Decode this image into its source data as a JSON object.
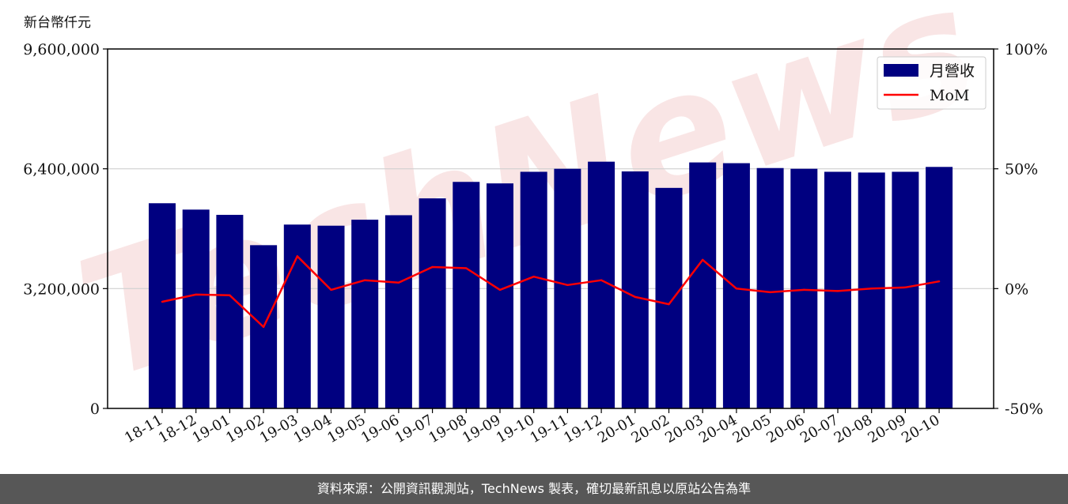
{
  "header": {
    "unit_label": "新台幣仟元"
  },
  "footer": {
    "source_text": "資料來源：公開資訊觀測站，TechNews 製表，確切最新訊息以原站公告為準"
  },
  "colors": {
    "bar": "#000080",
    "line": "#ff0000",
    "watermark": "#f2c6c6"
  },
  "watermark": "TechNews",
  "chart_data": {
    "type": "bar",
    "categories": [
      "18-11",
      "18-12",
      "19-01",
      "19-02",
      "19-03",
      "19-04",
      "19-05",
      "19-06",
      "19-07",
      "19-08",
      "19-09",
      "19-10",
      "19-11",
      "19-12",
      "20-01",
      "20-02",
      "20-03",
      "20-04",
      "20-05",
      "20-06",
      "20-07",
      "20-08",
      "20-09",
      "20-10"
    ],
    "series": [
      {
        "name": "月營收",
        "type": "bar",
        "axis": "left",
        "values": [
          5480000,
          5310000,
          5170000,
          4360000,
          4910000,
          4880000,
          5040000,
          5160000,
          5610000,
          6050000,
          6010000,
          6320000,
          6400000,
          6590000,
          6330000,
          5890000,
          6570000,
          6550000,
          6420000,
          6400000,
          6320000,
          6300000,
          6320000,
          6450000
        ]
      },
      {
        "name": "MoM",
        "type": "line",
        "axis": "right",
        "unit": "%",
        "values": [
          -5.5,
          -2.5,
          -2.8,
          -16,
          13.5,
          -0.5,
          3.5,
          2.5,
          9,
          8.5,
          -0.5,
          5,
          1.5,
          3.5,
          -3.5,
          -6.5,
          12,
          0,
          -1.5,
          -0.5,
          -1,
          0,
          0.5,
          3
        ]
      }
    ],
    "left_axis": {
      "ylim": [
        0,
        9600000
      ],
      "ticks": [
        "0",
        "3,200,000",
        "6,400,000",
        "9,600,000"
      ],
      "tick_values": [
        0,
        3200000,
        6400000,
        9600000
      ]
    },
    "right_axis": {
      "ylim": [
        -50,
        100
      ],
      "ticks": [
        "-50%",
        "0%",
        "50%",
        "100%"
      ],
      "tick_values": [
        -50,
        0,
        50,
        100
      ]
    },
    "grid": "horizontal",
    "legend_position": "top-right",
    "title": "",
    "xlabel": "",
    "ylabel": ""
  }
}
